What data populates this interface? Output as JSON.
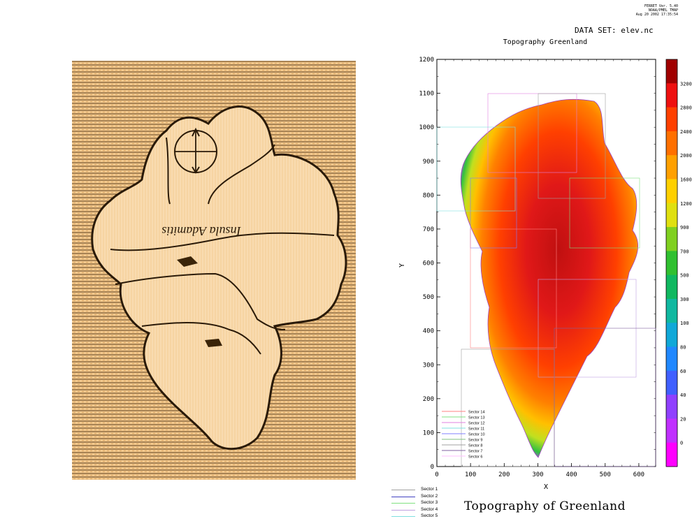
{
  "stamp": {
    "lines": [
      "FERRET Ver. 5.40",
      "NOAA/PMEL TMAP",
      "Aug 20 2002 17:35:54"
    ]
  },
  "dataset": "DATA SET: elev.nc",
  "plot_title": "Topography Greenland",
  "caption": "Topography of Greenland",
  "old_map": {
    "label": "Insula Adamitis",
    "paper_color": "#f3c98e",
    "land_color": "#f9dbb0",
    "ink_color": "#2a1a08"
  },
  "axes": {
    "xlabel": "X",
    "ylabel": "Y",
    "xlim": [
      0,
      650
    ],
    "ylim": [
      0,
      1200
    ],
    "xticks": [
      "0",
      "100",
      "200",
      "300",
      "400",
      "500",
      "600"
    ],
    "yticks": [
      "0",
      "100",
      "200",
      "300",
      "400",
      "500",
      "600",
      "700",
      "800",
      "900",
      "1000",
      "1100",
      "1200"
    ]
  },
  "colorbar": {
    "labels": [
      "0",
      "20",
      "40",
      "60",
      "80",
      "100",
      "300",
      "500",
      "700",
      "900",
      "1200",
      "1600",
      "2000",
      "2400",
      "2800",
      "3200"
    ],
    "colors": [
      "#ff00ff",
      "#c030ff",
      "#9040ff",
      "#4060ff",
      "#2088ff",
      "#10a8d8",
      "#10b8a0",
      "#10b860",
      "#30c030",
      "#80d020",
      "#e0e010",
      "#ffd000",
      "#ffa000",
      "#ff7000",
      "#ff4000",
      "#ee1010",
      "#a00000"
    ]
  },
  "sectors_plot": [
    {
      "name": "Sector 14",
      "color": "#ff8080"
    },
    {
      "name": "Sector 13",
      "color": "#80e080"
    },
    {
      "name": "Sector 12",
      "color": "#e080e0"
    },
    {
      "name": "Sector 11",
      "color": "#80e0e0"
    },
    {
      "name": "Sector 10",
      "color": "#8080ff"
    },
    {
      "name": "Sector 9",
      "color": "#80c080"
    },
    {
      "name": "Sector 8",
      "color": "#a0a0a0"
    },
    {
      "name": "Sector 7",
      "color": "#8060a0"
    },
    {
      "name": "Sector 6",
      "color": "#ffc0ff"
    }
  ],
  "sectors_bottom": [
    {
      "name": "Sector 1",
      "color": "#a0a0a0"
    },
    {
      "name": "Sector 2",
      "color": "#4040c0"
    },
    {
      "name": "Sector 3",
      "color": "#80e080"
    },
    {
      "name": "Sector 4",
      "color": "#c0a0e0"
    },
    {
      "name": "Sector 5",
      "color": "#80e0e0"
    }
  ]
}
